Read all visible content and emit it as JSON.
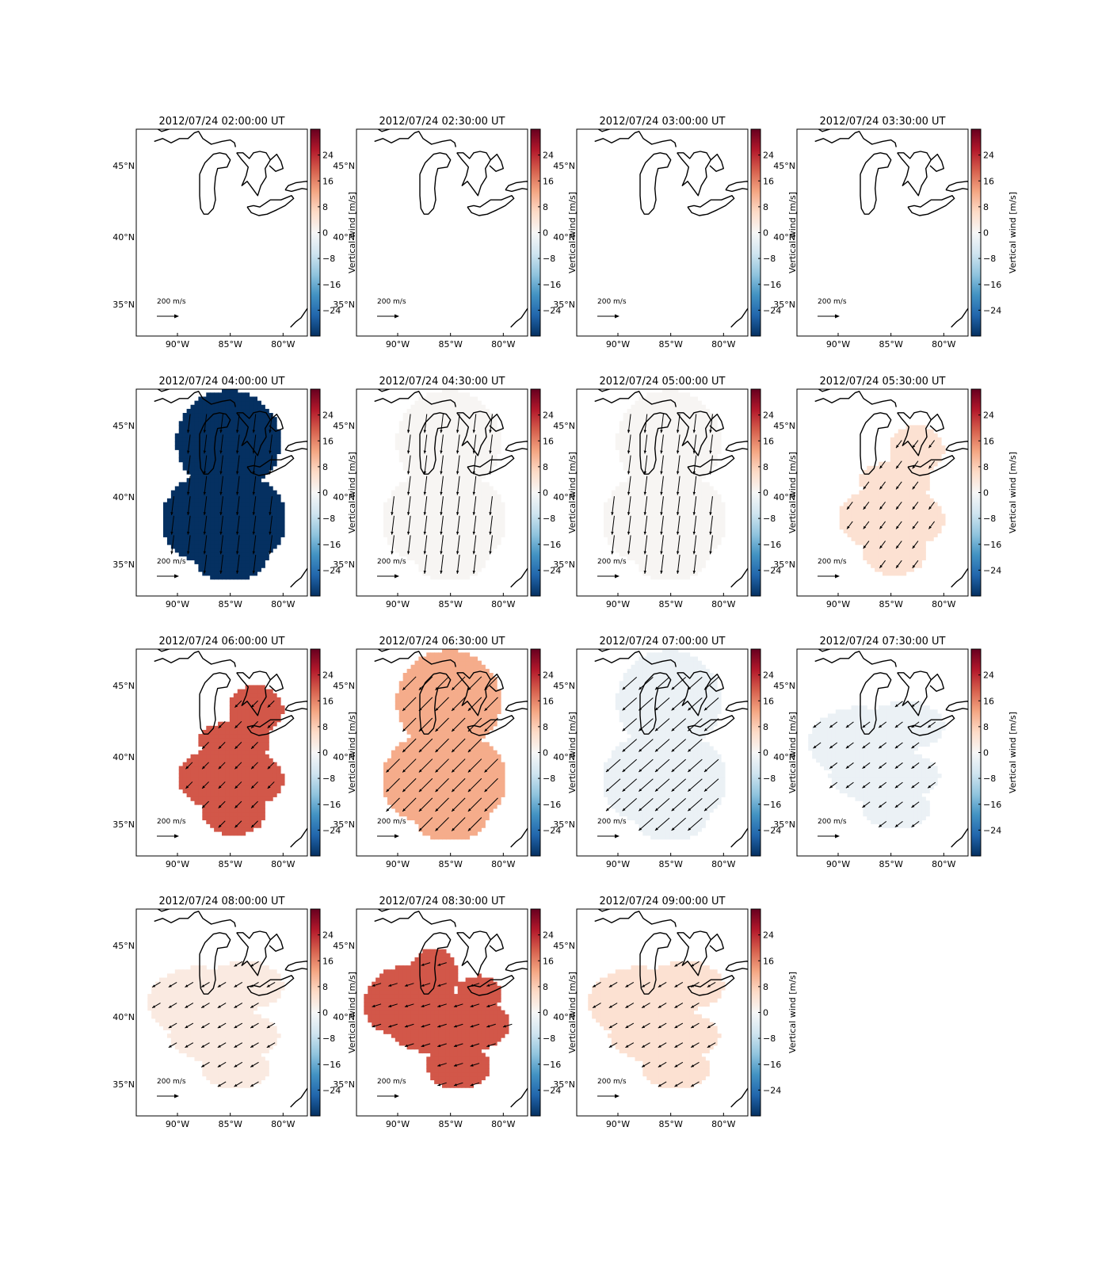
{
  "chart_data": {
    "type": "heatmap",
    "layout": {
      "rows": 4,
      "cols": 4
    },
    "lon_ticks": [
      "90°W",
      "85°W",
      "80°W"
    ],
    "lat_ticks": [
      "45°N",
      "40°N",
      "35°N"
    ],
    "colorbar": {
      "label": "Vertical wind [m/s]",
      "range": [
        -32,
        32
      ],
      "ticks": [
        -24,
        -16,
        -8,
        0,
        8,
        16,
        24
      ],
      "tick_labels": [
        "−24",
        "−16",
        "−8",
        "0",
        "8",
        "16",
        "24"
      ],
      "colormap": "RdBu_r"
    },
    "quiver_key": {
      "label": "200 m/s",
      "value": 200
    },
    "panels": [
      {
        "title": "2012/07/24 02:00:00 UT",
        "value": null,
        "shape": "none",
        "wind_dir": null
      },
      {
        "title": "2012/07/24 02:30:00 UT",
        "value": null,
        "shape": "none",
        "wind_dir": null
      },
      {
        "title": "2012/07/24 03:00:00 UT",
        "value": null,
        "shape": "none",
        "wind_dir": null
      },
      {
        "title": "2012/07/24 03:30:00 UT",
        "value": null,
        "shape": "none",
        "wind_dir": null
      },
      {
        "title": "2012/07/24 04:00:00 UT",
        "value": -32,
        "shape": "full",
        "wind_dir": [
          0.12,
          1
        ]
      },
      {
        "title": "2012/07/24 04:30:00 UT",
        "value": 0.5,
        "shape": "full",
        "wind_dir": [
          0.12,
          1
        ]
      },
      {
        "title": "2012/07/24 05:00:00 UT",
        "value": 0.5,
        "shape": "full",
        "wind_dir": [
          0.12,
          1
        ]
      },
      {
        "title": "2012/07/24 05:30:00 UT",
        "value": 5,
        "shape": "southeast",
        "wind_dir": [
          0.6,
          0.8
        ]
      },
      {
        "title": "2012/07/24 06:00:00 UT",
        "value": 20,
        "shape": "southeast",
        "wind_dir": [
          0.7,
          0.7
        ]
      },
      {
        "title": "2012/07/24 06:30:00 UT",
        "value": 12,
        "shape": "full",
        "wind_dir": [
          0.7,
          0.7
        ]
      },
      {
        "title": "2012/07/24 07:00:00 UT",
        "value": -2,
        "shape": "full",
        "wind_dir": [
          0.75,
          0.66
        ]
      },
      {
        "title": "2012/07/24 07:30:00 UT",
        "value": -2,
        "shape": "west",
        "wind_dir": [
          0.8,
          0.6
        ]
      },
      {
        "title": "2012/07/24 08:00:00 UT",
        "value": 3,
        "shape": "west",
        "wind_dir": [
          0.85,
          0.5
        ]
      },
      {
        "title": "2012/07/24 08:30:00 UT",
        "value": 20,
        "shape": "westcore",
        "wind_dir": [
          0.95,
          0.3
        ]
      },
      {
        "title": "2012/07/24 09:00:00 UT",
        "value": 5,
        "shape": "west",
        "wind_dir": [
          0.85,
          0.5
        ]
      }
    ]
  }
}
